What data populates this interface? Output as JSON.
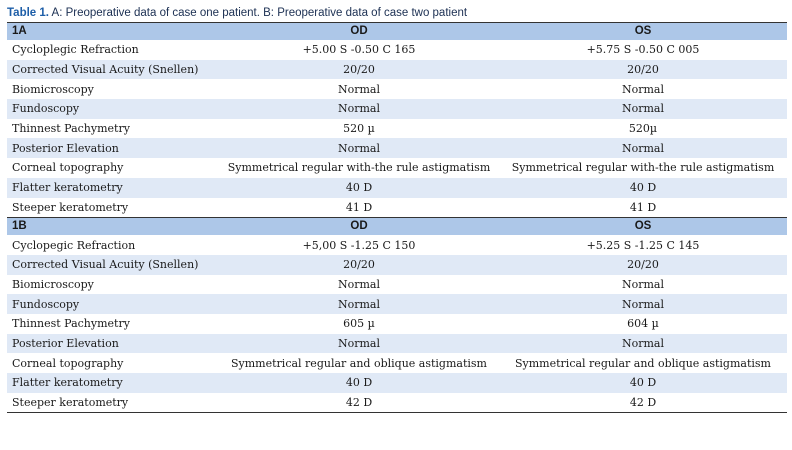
{
  "caption": {
    "label": "Table 1.",
    "text": " A: Preoperative data of case one patient. B: Preoperative data of case two patient"
  },
  "sections": [
    {
      "id": "1A",
      "columns": [
        "1A",
        "OD",
        "OS"
      ],
      "rows": [
        [
          "Cycloplegic Refraction",
          "+5.00 S -0.50 C 165",
          "+5.75 S -0.50 C 005"
        ],
        [
          "Corrected Visual Acuity (Snellen)",
          "20/20",
          "20/20"
        ],
        [
          "Biomicroscopy",
          "Normal",
          "Normal"
        ],
        [
          "Fundoscopy",
          "Normal",
          "Normal"
        ],
        [
          "Thinnest Pachymetry",
          "520 µ",
          "520µ"
        ],
        [
          "Posterior Elevation",
          "Normal",
          "Normal"
        ],
        [
          "Corneal topography",
          "Symmetrical regular with-the rule astigmatism",
          "Symmetrical regular with-the rule astigmatism"
        ],
        [
          "Flatter keratometry",
          "40 D",
          "40 D"
        ],
        [
          "Steeper keratometry",
          "41 D",
          "41 D"
        ]
      ]
    },
    {
      "id": "1B",
      "columns": [
        "1B",
        "OD",
        "OS"
      ],
      "rows": [
        [
          "Cyclopegic Refraction",
          "+5,00 S -1.25 C 150",
          "+5.25 S -1.25 C 145"
        ],
        [
          "Corrected Visual Acuity (Snellen)",
          "20/20",
          "20/20"
        ],
        [
          "Biomicroscopy",
          "Normal",
          "Normal"
        ],
        [
          "Fundoscopy",
          "Normal",
          "Normal"
        ],
        [
          "Thinnest Pachymetry",
          "605 µ",
          "604 µ"
        ],
        [
          "Posterior Elevation",
          "Normal",
          "Normal"
        ],
        [
          "Corneal topography",
          "Symmetrical regular and oblique astigmatism",
          "Symmetrical regular and oblique astigmatism"
        ],
        [
          "Flatter keratometry",
          "40 D",
          "40 D"
        ],
        [
          "Steeper keratometry",
          "42 D",
          "42 D"
        ]
      ]
    }
  ],
  "colors": {
    "header_bg": "#adc7e8",
    "stripe_bg": "#e0e9f6",
    "caption_label": "#1d5ea8"
  }
}
